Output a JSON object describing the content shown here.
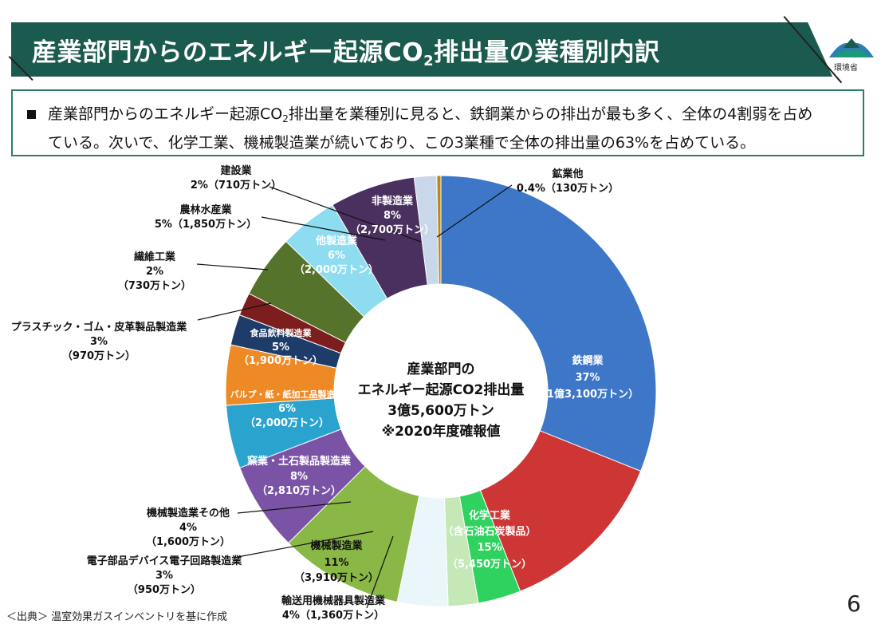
{
  "slide": {
    "title": "産業部門からのエネルギー起源CO2排出量の業種別内訳",
    "title_main": "産業部門からのエネルギー起源CO",
    "title_sub": "2",
    "title_rest": "排出量の業種別内訳",
    "logo_text": "環境省",
    "summary_line1_a": "産業部門からのエネルギー起源CO",
    "summary_line1_sub": "2",
    "summary_line1_b": "排出量を業種別に見ると、鉄鋼業からの排出が最も多く、全体の4割弱を占め",
    "summary_line2": "ている。次いで、化学工業、機械製造業が続いており、この3業種で全体の排出量の63%を占めている。",
    "source": "＜出典＞ 温室効果ガスインベントリを基に作成",
    "page_number": "6"
  },
  "chart_data": {
    "type": "pie",
    "style": "donut",
    "center_label": {
      "line1": "産業部門の",
      "line2": "エネルギー起源CO2排出量",
      "line3": "3億5,600万トン",
      "line4": "※2020年度確報値"
    },
    "series": [
      {
        "name": "鉄鋼業",
        "percent": "37%",
        "amount": "（1億3,100万トン）",
        "value": 13100,
        "color": "#3e77c8"
      },
      {
        "name": "化学工業（含石油石炭製品）",
        "percent": "15%",
        "amount": "（5,450万トン）",
        "value": 5450,
        "color": "#ce3535"
      },
      {
        "name": "輸送用機械器具製造業",
        "percent": "4%",
        "amount": "（1,360万トン）",
        "value": 1360,
        "color": "#2fd25e"
      },
      {
        "name": "電子部品デバイス電子回路製造業",
        "percent": "3%",
        "amount": "（950万トン）",
        "value": 950,
        "color": "#c4e8b6"
      },
      {
        "name": "機械製造業その他",
        "percent": "4%",
        "amount": "（1,600万トン）",
        "value": 1600,
        "color": "#eaf6f9"
      },
      {
        "name": "機械製造業",
        "percent": "11%",
        "amount": "（3,910万トン）",
        "value": 3910,
        "color": "#8ab846"
      },
      {
        "name": "窯業・土石製品製造業",
        "percent": "8%",
        "amount": "（2,810万トン）",
        "value": 2810,
        "color": "#7b53a6"
      },
      {
        "name": "パルプ・紙・紙加工品製造業",
        "percent": "6%",
        "amount": "（2,000万トン）",
        "value": 2000,
        "color": "#2aa4cf"
      },
      {
        "name": "食品飲料製造業",
        "percent": "5%",
        "amount": "（1,900万トン）",
        "value": 1900,
        "color": "#ee8a26"
      },
      {
        "name": "プラスチック・ゴム・皮革製品製造業",
        "percent": "3%",
        "amount": "（970万トン）",
        "value": 970,
        "color": "#1e3c6a"
      },
      {
        "name": "繊維工業",
        "percent": "2%",
        "amount": "（730万トン）",
        "value": 730,
        "color": "#7c1e1e"
      },
      {
        "name": "他製造業",
        "percent": "6%",
        "amount": "（2,000万トン）",
        "value": 2000,
        "color": "#55732a"
      },
      {
        "name": "農林水産業",
        "percent": "5%",
        "amount": "（1,850万トン）",
        "value": 1850,
        "color": "#8ddcf0"
      },
      {
        "name": "非製造業",
        "percent": "8%",
        "amount": "（2,700万トン）",
        "value": 2700,
        "color": "#4a305e"
      },
      {
        "name": "建設業",
        "percent": "2%",
        "amount": "（710万トン）",
        "value": 710,
        "color": "#c9d7ea"
      },
      {
        "name": "鉱業他",
        "percent": "0.4%",
        "amount": "（130万トン）",
        "value": 130,
        "color": "#b88a1c"
      }
    ],
    "slice_labels": [
      {
        "text": "鉄鋼業",
        "color": "#ffffff"
      },
      {
        "text": "37%",
        "color": "#ffffff"
      },
      {
        "text": "（1億3,100万トン）",
        "color": "#ffffff"
      },
      {
        "text": "化学工業",
        "color": "#ffffff"
      },
      {
        "text": "（含石油石炭製品）",
        "color": "#ffffff"
      },
      {
        "text": "15%",
        "color": "#ffffff"
      },
      {
        "text": "（5,450万トン）",
        "color": "#ffffff"
      },
      {
        "text": "機械製造業",
        "color": "#111111"
      },
      {
        "text": "11%",
        "color": "#111111"
      },
      {
        "text": "（3,910万トン）",
        "color": "#111111"
      },
      {
        "text": "窯業・土石製品製造業",
        "color": "#ffffff"
      },
      {
        "text": "8%",
        "color": "#ffffff"
      },
      {
        "text": "（2,810万トン）",
        "color": "#ffffff"
      },
      {
        "text": "パルプ・紙・紙加工品製造業",
        "color": "#ffffff"
      },
      {
        "text": "6%",
        "color": "#ffffff"
      },
      {
        "text": "（2,000万トン）",
        "color": "#ffffff"
      },
      {
        "text": "食品飲料製造業",
        "color": "#ffffff"
      },
      {
        "text": "5%",
        "color": "#ffffff"
      },
      {
        "text": "（1,900万トン）",
        "color": "#ffffff"
      },
      {
        "text": "他製造業",
        "color": "#ffffff"
      },
      {
        "text": "6%",
        "color": "#ffffff"
      },
      {
        "text": "（2,000万トン）",
        "color": "#ffffff"
      },
      {
        "text": "非製造業",
        "color": "#ffffff"
      },
      {
        "text": "8%",
        "color": "#ffffff"
      },
      {
        "text": "（2,700万トン）",
        "color": "#ffffff"
      }
    ],
    "callouts": [
      {
        "lines": [
          "鉱業他",
          "0.4%（130万トン）"
        ]
      },
      {
        "lines": [
          "建設業",
          "2%（710万トン）"
        ]
      },
      {
        "lines": [
          "農林水産業",
          "5%（1,850万トン）"
        ]
      },
      {
        "lines": [
          "繊維工業",
          "2%",
          "（730万トン）"
        ]
      },
      {
        "lines": [
          "プラスチック・ゴム・皮革製品製造業",
          "3%",
          "（970万トン）"
        ]
      },
      {
        "lines": [
          "機械製造業その他",
          "4%",
          "（1,600万トン）"
        ]
      },
      {
        "lines": [
          "電子部品デバイス電子回路製造業",
          "3%",
          "（950万トン）"
        ]
      },
      {
        "lines": [
          "輸送用機械器具製造業",
          "4%（1,360万トン）"
        ]
      }
    ]
  }
}
